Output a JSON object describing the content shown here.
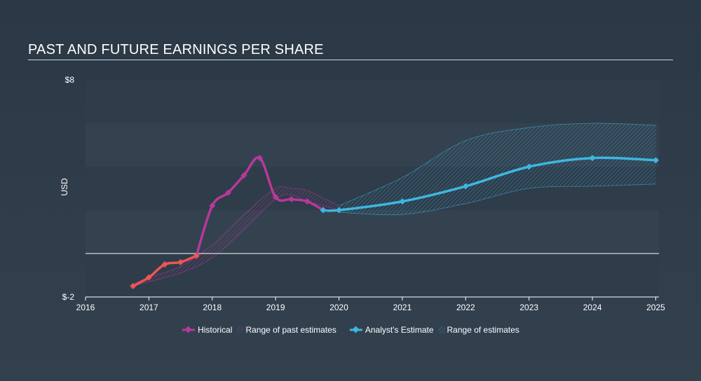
{
  "header": {
    "title": "PAST AND FUTURE EARNINGS PER SHARE"
  },
  "legend": {
    "historical": "Historical",
    "past_range": "Range of past estimates",
    "estimate": "Analyst's Estimate",
    "future_range": "Range of estimates"
  },
  "colors": {
    "historical": "#b8389a",
    "historical_early": "#f05454",
    "estimate": "#3eb6e0",
    "baseline": "#ffffff"
  },
  "chart_data": {
    "type": "line",
    "title": "PAST AND FUTURE EARNINGS PER SHARE",
    "ylabel": "USD",
    "ylim": [
      -2,
      8
    ],
    "xlim": [
      2016,
      2025.05
    ],
    "y_tick_labels": [
      "$8",
      "$-2"
    ],
    "x_ticks": [
      "2016",
      "2017",
      "2018",
      "2019",
      "2020",
      "2021",
      "2022",
      "2023",
      "2024",
      "2025"
    ],
    "series": [
      {
        "name": "Historical",
        "x": [
          2016.75,
          2017.0,
          2017.25,
          2017.5,
          2017.75,
          2018.0,
          2018.25,
          2018.5,
          2018.75,
          2019.0,
          2019.25,
          2019.5,
          2019.75
        ],
        "y": [
          -1.5,
          -1.1,
          -0.5,
          -0.4,
          -0.1,
          2.2,
          2.8,
          3.6,
          4.4,
          2.6,
          2.5,
          2.4,
          2.0
        ]
      },
      {
        "name": "Analyst's Estimate",
        "x": [
          2019.75,
          2020.0,
          2021.0,
          2022.0,
          2023.0,
          2024.0,
          2025.0
        ],
        "y": [
          2.0,
          2.0,
          2.4,
          3.1,
          4.0,
          4.4,
          4.3
        ]
      }
    ],
    "past_estimate_range": {
      "x": [
        2016.75,
        2017.0,
        2017.5,
        2018.0,
        2018.5,
        2019.0,
        2019.25,
        2019.5,
        2020.0
      ],
      "low": [
        -1.5,
        -1.3,
        -0.9,
        -0.2,
        1.1,
        2.5,
        2.7,
        2.4,
        2.0
      ],
      "high": [
        -1.4,
        -1.1,
        -0.6,
        0.4,
        1.8,
        3.0,
        3.0,
        2.9,
        2.2
      ]
    },
    "future_estimate_range": {
      "x": [
        2020.0,
        2021.0,
        2022.0,
        2023.0,
        2024.0,
        2025.0
      ],
      "low": [
        1.9,
        1.8,
        2.3,
        3.0,
        3.1,
        3.2
      ],
      "high": [
        2.2,
        3.5,
        5.2,
        5.8,
        6.0,
        5.9
      ]
    }
  }
}
